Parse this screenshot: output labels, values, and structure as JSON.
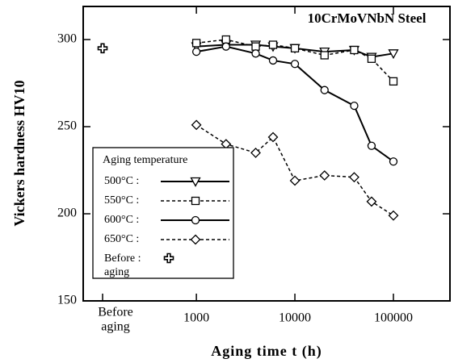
{
  "chart_data": {
    "type": "line",
    "title": "10CrMoVNbN Steel",
    "x_label": "Aging time  t  (h)",
    "y_label": "Vickers hardness  HV10",
    "x_log": true,
    "x": [
      1000,
      2000,
      4000,
      6000,
      10000,
      20000,
      40000,
      60000,
      100000
    ],
    "xlim": [
      71,
      375000
    ],
    "xticks": [
      1000,
      10000,
      100000
    ],
    "ylim": [
      150,
      319
    ],
    "yticks": [
      150,
      200,
      250,
      300
    ],
    "legend_title": "Aging temperature",
    "series": [
      {
        "name": "500°C :",
        "color": "#000",
        "marker": "triangle",
        "dash": false,
        "values": [
          296,
          297,
          297,
          296,
          295,
          293,
          294,
          290,
          292
        ]
      },
      {
        "name": "550°C :",
        "color": "#000",
        "marker": "square",
        "dash": true,
        "values": [
          298,
          300,
          296,
          297,
          295,
          291,
          294,
          289,
          276
        ]
      },
      {
        "name": "600°C :",
        "color": "#000",
        "marker": "circle",
        "dash": false,
        "values": [
          293,
          296,
          292,
          288,
          286,
          271,
          262,
          239,
          230
        ]
      },
      {
        "name": "650°C :",
        "color": "#000",
        "marker": "diamond",
        "dash": true,
        "values": [
          251,
          240,
          235,
          244,
          219,
          222,
          221,
          207,
          199
        ]
      }
    ],
    "before_aging": {
      "axis_label": [
        "Before",
        "aging"
      ],
      "legend_label": [
        "Before :",
        "aging"
      ],
      "marker": "plus",
      "value": 295
    }
  }
}
